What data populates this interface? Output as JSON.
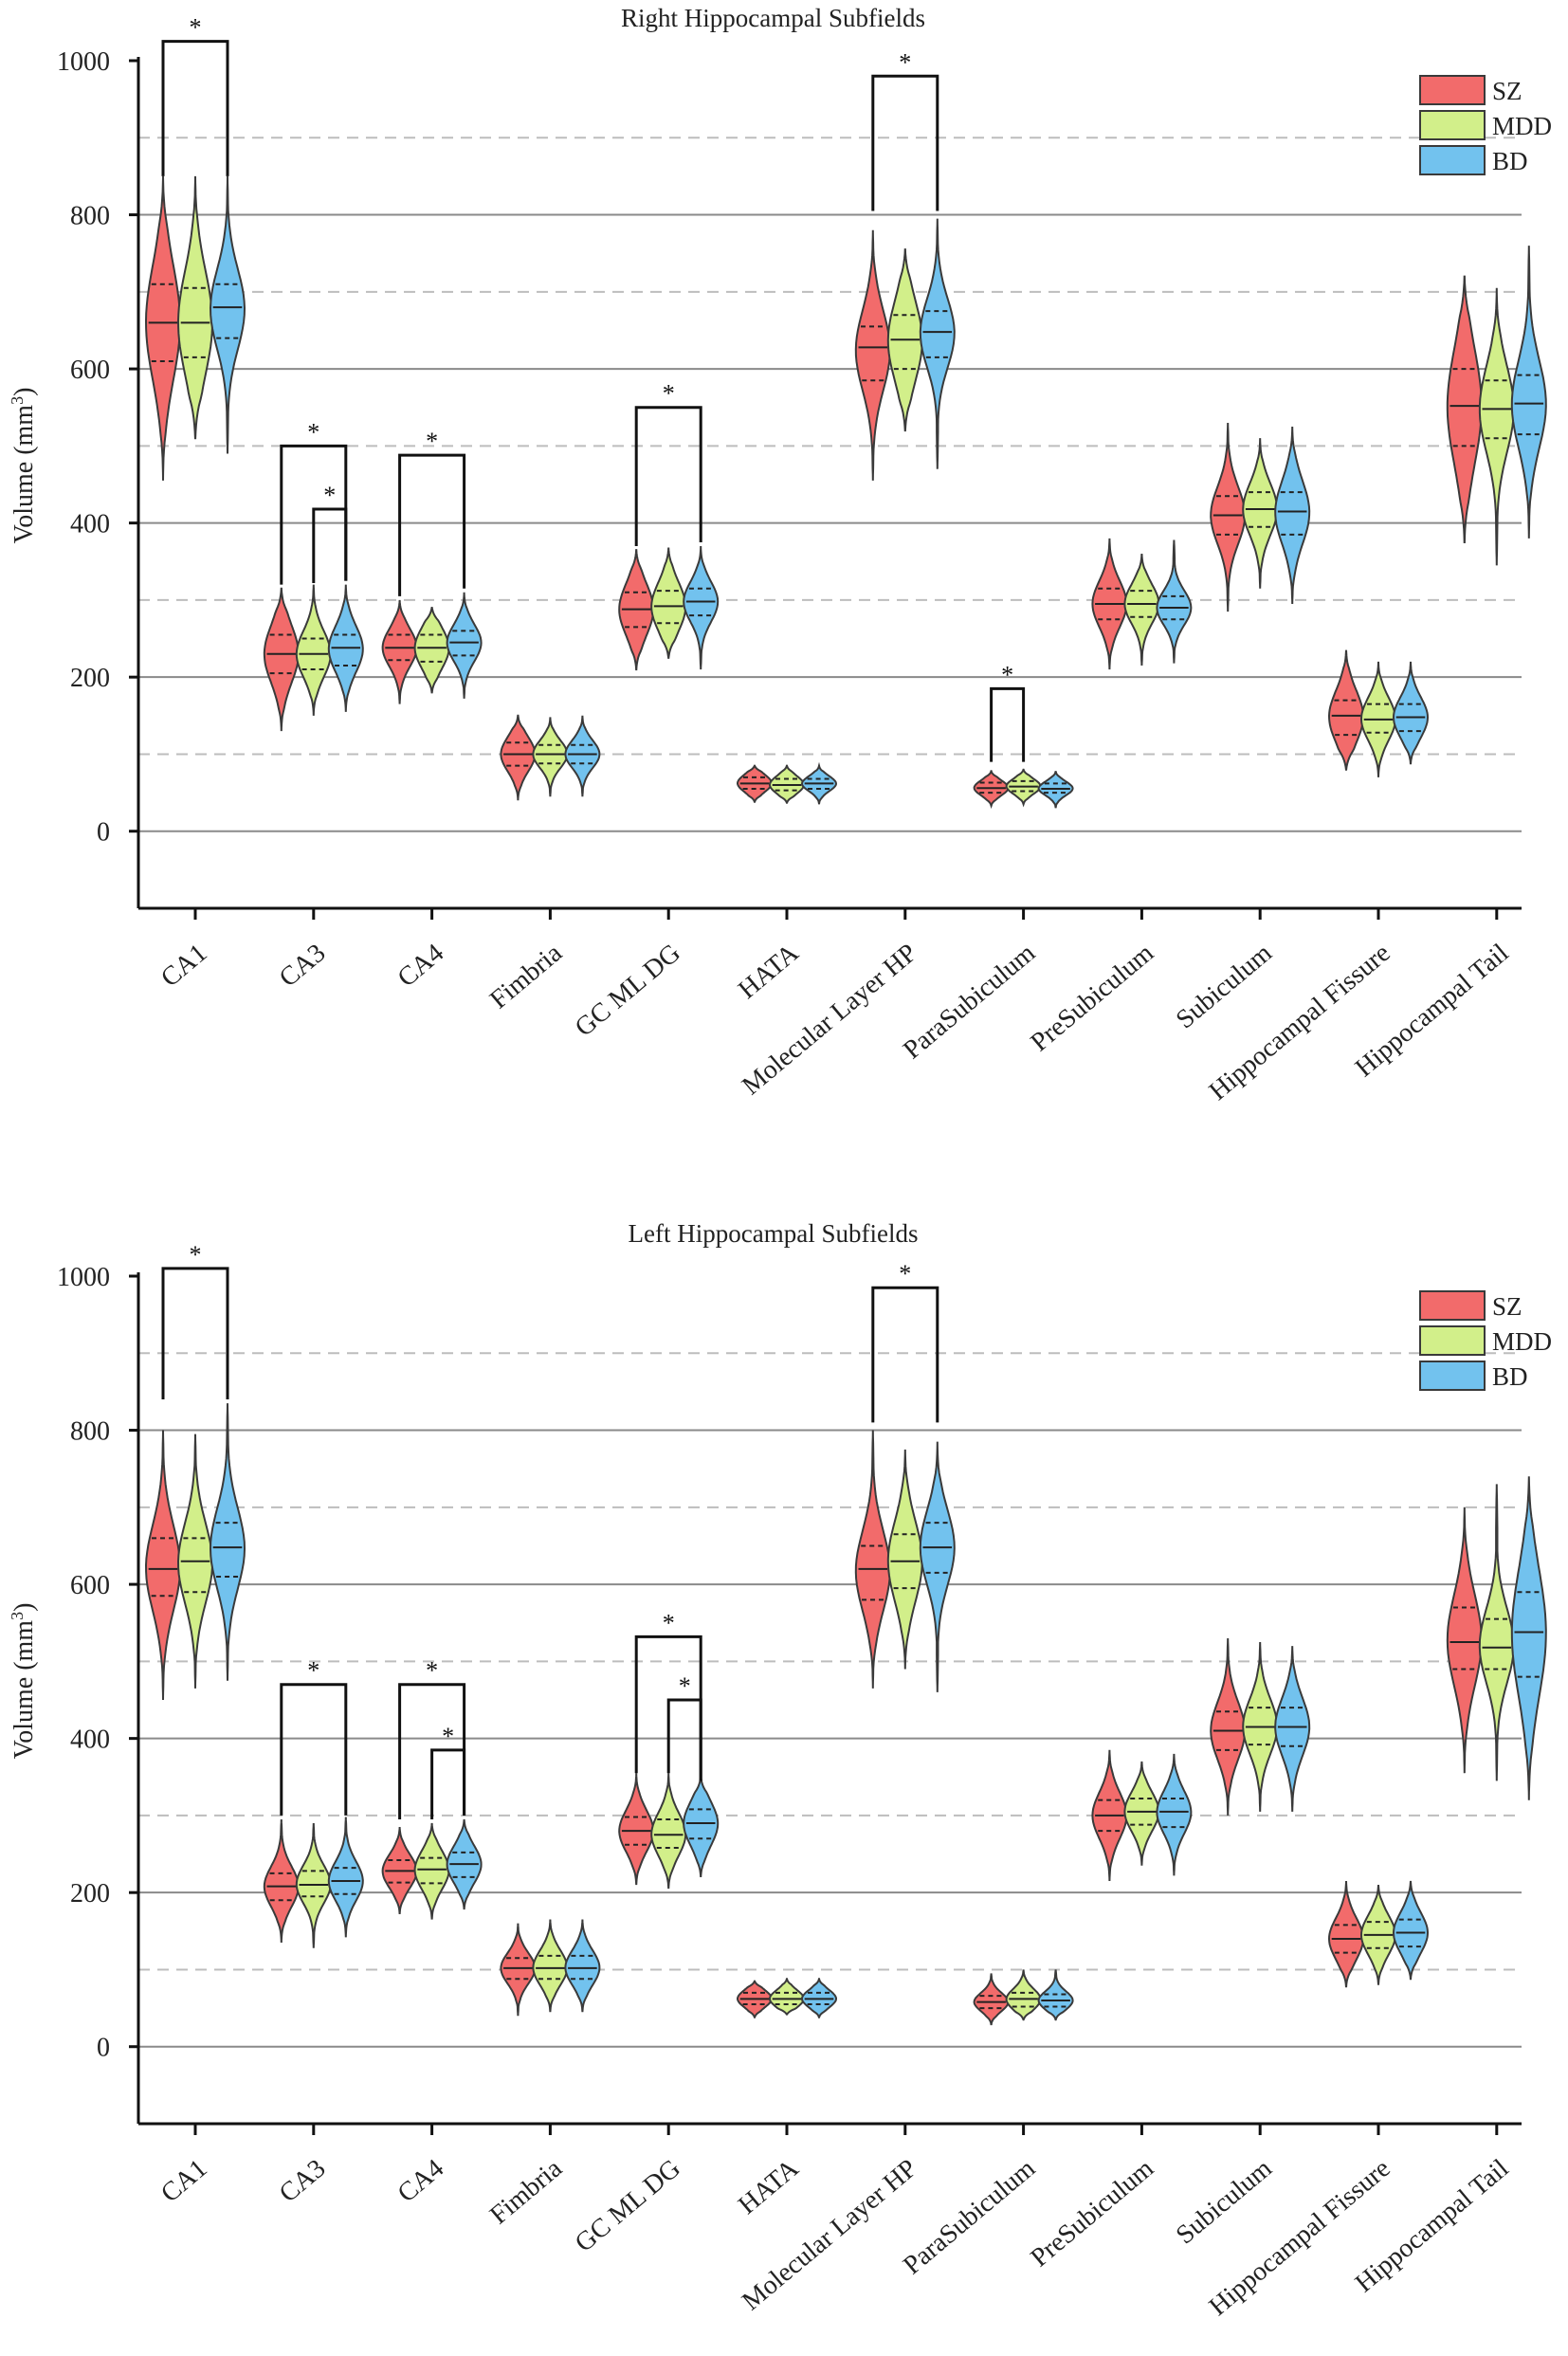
{
  "colors": {
    "SZ": "#f26b6b",
    "MDD": "#d2ef8a",
    "BD": "#72c2ee",
    "outline": "#3a3a3a"
  },
  "chart_data": [
    {
      "type": "violin",
      "title": "Right Hippocampal Subfields",
      "ylabel_main": "Volume (mm",
      "ylabel_sup": "3",
      "ylabel_close": ")",
      "ylim": [
        -100,
        1000
      ],
      "yticks": [
        0,
        200,
        400,
        600,
        800,
        1000
      ],
      "ytick_labels": [
        "0",
        "200",
        "400",
        "600",
        "800",
        "1000"
      ],
      "grid_solid": [
        0,
        200,
        400,
        600,
        800
      ],
      "grid_dashed": [
        100,
        300,
        500,
        700,
        900
      ],
      "legend": [
        "SZ",
        "MDD",
        "BD"
      ],
      "legend_position": "top-right",
      "categories": [
        "CA1",
        "CA3",
        "CA4",
        "Fimbria",
        "GC ML DG",
        "HATA",
        "Molecular Layer HP",
        "ParaSubiculum",
        "PreSubiculum",
        "Subiculum",
        "Hippocampal Fissure",
        "Hippocampal Tail"
      ],
      "series": [
        {
          "name": "SZ",
          "stats": [
            {
              "min": 455,
              "q1": 610,
              "median": 660,
              "q3": 710,
              "max": 850
            },
            {
              "min": 130,
              "q1": 205,
              "median": 230,
              "q3": 255,
              "max": 315
            },
            {
              "min": 165,
              "q1": 222,
              "median": 238,
              "q3": 255,
              "max": 300
            },
            {
              "min": 40,
              "q1": 85,
              "median": 100,
              "q3": 115,
              "max": 150
            },
            {
              "min": 210,
              "q1": 265,
              "median": 288,
              "q3": 310,
              "max": 365
            },
            {
              "min": 38,
              "q1": 55,
              "median": 62,
              "q3": 70,
              "max": 85
            },
            {
              "min": 455,
              "q1": 585,
              "median": 628,
              "q3": 655,
              "max": 780
            },
            {
              "min": 33,
              "q1": 50,
              "median": 56,
              "q3": 63,
              "max": 78
            },
            {
              "min": 210,
              "q1": 275,
              "median": 295,
              "q3": 315,
              "max": 380
            },
            {
              "min": 285,
              "q1": 385,
              "median": 410,
              "q3": 435,
              "max": 530
            },
            {
              "min": 80,
              "q1": 125,
              "median": 150,
              "q3": 170,
              "max": 235
            },
            {
              "min": 375,
              "q1": 500,
              "median": 552,
              "q3": 600,
              "max": 720
            }
          ]
        },
        {
          "name": "MDD",
          "stats": [
            {
              "min": 510,
              "q1": 615,
              "median": 660,
              "q3": 705,
              "max": 850
            },
            {
              "min": 150,
              "q1": 210,
              "median": 230,
              "q3": 250,
              "max": 320
            },
            {
              "min": 180,
              "q1": 220,
              "median": 238,
              "q3": 255,
              "max": 290
            },
            {
              "min": 45,
              "q1": 88,
              "median": 100,
              "q3": 112,
              "max": 148
            },
            {
              "min": 225,
              "q1": 270,
              "median": 292,
              "q3": 312,
              "max": 368
            },
            {
              "min": 37,
              "q1": 53,
              "median": 60,
              "q3": 68,
              "max": 85
            },
            {
              "min": 520,
              "q1": 600,
              "median": 638,
              "q3": 670,
              "max": 755
            },
            {
              "min": 35,
              "q1": 52,
              "median": 58,
              "q3": 65,
              "max": 80
            },
            {
              "min": 215,
              "q1": 278,
              "median": 295,
              "q3": 312,
              "max": 360
            },
            {
              "min": 315,
              "q1": 395,
              "median": 418,
              "q3": 440,
              "max": 510
            },
            {
              "min": 70,
              "q1": 128,
              "median": 145,
              "q3": 165,
              "max": 220
            },
            {
              "min": 345,
              "q1": 510,
              "median": 548,
              "q3": 585,
              "max": 705
            }
          ]
        },
        {
          "name": "BD",
          "stats": [
            {
              "min": 490,
              "q1": 640,
              "median": 680,
              "q3": 710,
              "max": 850
            },
            {
              "min": 155,
              "q1": 215,
              "median": 238,
              "q3": 255,
              "max": 320
            },
            {
              "min": 172,
              "q1": 228,
              "median": 245,
              "q3": 260,
              "max": 310
            },
            {
              "min": 45,
              "q1": 88,
              "median": 100,
              "q3": 112,
              "max": 150
            },
            {
              "min": 210,
              "q1": 280,
              "median": 298,
              "q3": 315,
              "max": 370
            },
            {
              "min": 35,
              "q1": 55,
              "median": 62,
              "q3": 68,
              "max": 85
            },
            {
              "min": 470,
              "q1": 615,
              "median": 648,
              "q3": 675,
              "max": 795
            },
            {
              "min": 30,
              "q1": 50,
              "median": 55,
              "q3": 62,
              "max": 78
            },
            {
              "min": 218,
              "q1": 275,
              "median": 290,
              "q3": 305,
              "max": 378
            },
            {
              "min": 295,
              "q1": 385,
              "median": 415,
              "q3": 440,
              "max": 525
            },
            {
              "min": 88,
              "q1": 130,
              "median": 148,
              "q3": 165,
              "max": 220
            },
            {
              "min": 380,
              "q1": 515,
              "median": 555,
              "q3": 592,
              "max": 760
            }
          ]
        }
      ],
      "significance": [
        {
          "category": 0,
          "from": "SZ",
          "to": "BD",
          "top": 1025,
          "base": [
            850,
            850
          ],
          "label": "*"
        },
        {
          "category": 1,
          "from": "SZ",
          "to": "BD",
          "top": 500,
          "base": [
            320,
            325
          ],
          "label": "*"
        },
        {
          "category": 1,
          "from": "MDD",
          "to": "BD",
          "top": 418,
          "base": [
            322,
            325
          ],
          "label": "*"
        },
        {
          "category": 2,
          "from": "SZ",
          "to": "BD",
          "top": 488,
          "base": [
            305,
            315
          ],
          "label": "*"
        },
        {
          "category": 4,
          "from": "SZ",
          "to": "BD",
          "top": 550,
          "base": [
            370,
            375
          ],
          "label": "*"
        },
        {
          "category": 6,
          "from": "SZ",
          "to": "BD",
          "top": 980,
          "base": [
            805,
            805
          ],
          "label": "*"
        },
        {
          "category": 7,
          "from": "SZ",
          "to": "MDD",
          "top": 185,
          "base": [
            90,
            90
          ],
          "label": "*"
        }
      ]
    },
    {
      "type": "violin",
      "title": "Left Hippocampal Subfields",
      "ylabel_main": "Volume (mm",
      "ylabel_sup": "3",
      "ylabel_close": ")",
      "ylim": [
        -100,
        1000
      ],
      "yticks": [
        0,
        200,
        400,
        600,
        800,
        1000
      ],
      "ytick_labels": [
        "0",
        "200",
        "400",
        "600",
        "800",
        "1000"
      ],
      "grid_solid": [
        0,
        200,
        400,
        600,
        800
      ],
      "grid_dashed": [
        100,
        300,
        500,
        700,
        900
      ],
      "legend": [
        "SZ",
        "MDD",
        "BD"
      ],
      "legend_position": "top-right",
      "categories": [
        "CA1",
        "CA3",
        "CA4",
        "Fimbria",
        "GC ML DG",
        "HATA",
        "Molecular Layer HP",
        "ParaSubiculum",
        "PreSubiculum",
        "Subiculum",
        "Hippocampal Fissure",
        "Hippocampal Tail"
      ],
      "series": [
        {
          "name": "SZ",
          "stats": [
            {
              "min": 450,
              "q1": 585,
              "median": 620,
              "q3": 660,
              "max": 800
            },
            {
              "min": 135,
              "q1": 190,
              "median": 208,
              "q3": 225,
              "max": 295
            },
            {
              "min": 172,
              "q1": 213,
              "median": 228,
              "q3": 242,
              "max": 285
            },
            {
              "min": 40,
              "q1": 88,
              "median": 102,
              "q3": 115,
              "max": 160
            },
            {
              "min": 210,
              "q1": 262,
              "median": 280,
              "q3": 298,
              "max": 355
            },
            {
              "min": 38,
              "q1": 55,
              "median": 62,
              "q3": 70,
              "max": 85
            },
            {
              "min": 465,
              "q1": 580,
              "median": 620,
              "q3": 650,
              "max": 800
            },
            {
              "min": 28,
              "q1": 50,
              "median": 58,
              "q3": 66,
              "max": 95
            },
            {
              "min": 215,
              "q1": 280,
              "median": 300,
              "q3": 320,
              "max": 385
            },
            {
              "min": 300,
              "q1": 385,
              "median": 410,
              "q3": 435,
              "max": 530
            },
            {
              "min": 78,
              "q1": 122,
              "median": 140,
              "q3": 158,
              "max": 215
            },
            {
              "min": 355,
              "q1": 490,
              "median": 525,
              "q3": 570,
              "max": 700
            }
          ]
        },
        {
          "name": "MDD",
          "stats": [
            {
              "min": 465,
              "q1": 590,
              "median": 630,
              "q3": 660,
              "max": 795
            },
            {
              "min": 128,
              "q1": 195,
              "median": 210,
              "q3": 228,
              "max": 290
            },
            {
              "min": 165,
              "q1": 212,
              "median": 230,
              "q3": 245,
              "max": 290
            },
            {
              "min": 45,
              "q1": 88,
              "median": 102,
              "q3": 118,
              "max": 165
            },
            {
              "min": 205,
              "q1": 258,
              "median": 275,
              "q3": 295,
              "max": 355
            },
            {
              "min": 42,
              "q1": 55,
              "median": 62,
              "q3": 70,
              "max": 88
            },
            {
              "min": 490,
              "q1": 595,
              "median": 630,
              "q3": 665,
              "max": 775
            },
            {
              "min": 35,
              "q1": 52,
              "median": 62,
              "q3": 70,
              "max": 100
            },
            {
              "min": 235,
              "q1": 288,
              "median": 305,
              "q3": 322,
              "max": 370
            },
            {
              "min": 305,
              "q1": 392,
              "median": 415,
              "q3": 440,
              "max": 525
            },
            {
              "min": 80,
              "q1": 128,
              "median": 145,
              "q3": 162,
              "max": 210
            },
            {
              "min": 345,
              "q1": 490,
              "median": 518,
              "q3": 555,
              "max": 730
            }
          ]
        },
        {
          "name": "BD",
          "stats": [
            {
              "min": 475,
              "q1": 610,
              "median": 648,
              "q3": 680,
              "max": 835
            },
            {
              "min": 142,
              "q1": 198,
              "median": 215,
              "q3": 232,
              "max": 298
            },
            {
              "min": 178,
              "q1": 220,
              "median": 237,
              "q3": 252,
              "max": 295
            },
            {
              "min": 45,
              "q1": 88,
              "median": 102,
              "q3": 118,
              "max": 165
            },
            {
              "min": 220,
              "q1": 270,
              "median": 290,
              "q3": 308,
              "max": 350
            },
            {
              "min": 38,
              "q1": 55,
              "median": 62,
              "q3": 70,
              "max": 88
            },
            {
              "min": 460,
              "q1": 615,
              "median": 648,
              "q3": 680,
              "max": 785
            },
            {
              "min": 35,
              "q1": 52,
              "median": 60,
              "q3": 68,
              "max": 100
            },
            {
              "min": 222,
              "q1": 285,
              "median": 305,
              "q3": 322,
              "max": 380
            },
            {
              "min": 305,
              "q1": 390,
              "median": 415,
              "q3": 440,
              "max": 520
            },
            {
              "min": 88,
              "q1": 130,
              "median": 148,
              "q3": 165,
              "max": 215
            },
            {
              "min": 320,
              "q1": 480,
              "median": 538,
              "q3": 590,
              "max": 740
            }
          ]
        }
      ],
      "significance": [
        {
          "category": 0,
          "from": "SZ",
          "to": "BD",
          "top": 1010,
          "base": [
            840,
            840
          ],
          "label": "*"
        },
        {
          "category": 1,
          "from": "SZ",
          "to": "BD",
          "top": 470,
          "base": [
            300,
            300
          ],
          "label": "*"
        },
        {
          "category": 2,
          "from": "SZ",
          "to": "BD",
          "top": 470,
          "base": [
            295,
            300
          ],
          "label": "*"
        },
        {
          "category": 2,
          "from": "MDD",
          "to": "BD",
          "top": 385,
          "base": [
            295,
            300
          ],
          "label": "*"
        },
        {
          "category": 4,
          "from": "SZ",
          "to": "BD",
          "top": 532,
          "base": [
            355,
            345
          ],
          "label": "*"
        },
        {
          "category": 4,
          "from": "MDD",
          "to": "BD",
          "top": 450,
          "base": [
            355,
            345
          ],
          "label": "*"
        },
        {
          "category": 6,
          "from": "SZ",
          "to": "BD",
          "top": 985,
          "base": [
            810,
            810
          ],
          "label": "*"
        }
      ]
    }
  ]
}
